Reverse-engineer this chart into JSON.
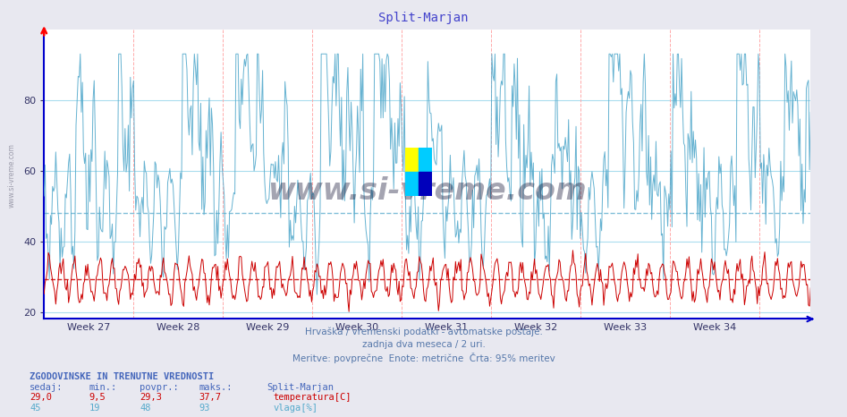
{
  "title": "Split-Marjan",
  "title_color": "#4444cc",
  "bg_color": "#e8e8f0",
  "plot_bg_color": "#ffffff",
  "x_label_weeks": [
    "Week 27",
    "Week 28",
    "Week 29",
    "Week 30",
    "Week 31",
    "Week 32",
    "Week 33",
    "Week 34"
  ],
  "y_ticks": [
    20,
    40,
    60,
    80
  ],
  "y_lim": [
    18,
    100
  ],
  "temp_color": "#cc0000",
  "humidity_color": "#55aacc",
  "red_hline": 29.3,
  "blue_hline": 48.0,
  "subtitle1": "Hrvaška / vremenski podatki - avtomatske postaje.",
  "subtitle2": "zadnja dva meseca / 2 uri.",
  "subtitle3": "Meritve: povprečne  Enote: metrične  Črta: 95% meritev",
  "footer_title": "ZGODOVINSKE IN TRENUTNE VREDNOSTI",
  "col_headers": [
    "sedaj:",
    "min.:",
    "povpr.:",
    "maks.:",
    "Split-Marjan"
  ],
  "row1_vals": [
    "29,0",
    "9,5",
    "29,3",
    "37,7"
  ],
  "row1_label": "temperatura[C]",
  "row2_vals": [
    "45",
    "19",
    "48",
    "93"
  ],
  "row2_label": "vlaga[%]",
  "hgrid_color": "#aaddee",
  "vgrid_color": "#ffaaaa",
  "sidebar_text": "www.si-vreme.com",
  "watermark_text": "www.si-vreme.com",
  "axis_color": "#0000cc",
  "tick_color": "#333366"
}
